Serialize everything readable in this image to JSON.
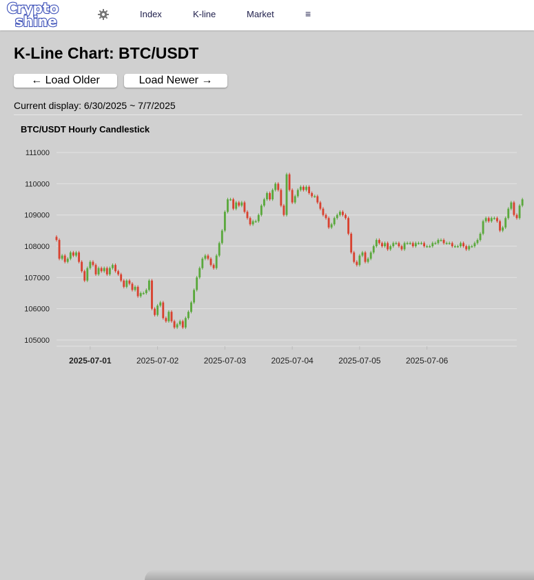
{
  "nav": {
    "logo_line1": "Crypto",
    "logo_line2": "shine",
    "settings_icon": "gear-icon",
    "links": [
      "Index",
      "K-line",
      "Market"
    ],
    "menu_icon": "≡"
  },
  "page": {
    "title": "K-Line Chart: BTC/USDT",
    "load_older": "← Load Older",
    "load_newer": "Load Newer →",
    "current_display": "Current display: 6/30/2025 ~ 7/7/2025"
  },
  "colors": {
    "up": "#5aa83c",
    "down": "#d8412f",
    "grid": "#e3e3e3",
    "logo_blue": "#3b4fb8"
  },
  "chart_data": {
    "type": "candlestick",
    "title": "BTC/USDT Hourly Candlestick",
    "ylim": [
      104800,
      111200
    ],
    "yticks": [
      105000,
      106000,
      107000,
      108000,
      109000,
      110000,
      111000
    ],
    "xlim": [
      "2025-06-30T12:00",
      "2025-07-07T08:00"
    ],
    "xticks": [
      "2025-07-01",
      "2025-07-02",
      "2025-07-03",
      "2025-07-04",
      "2025-07-05",
      "2025-07-06"
    ],
    "xtick_bold": "2025-07-01",
    "grid": true,
    "interval": "1h",
    "start": "2025-06-30T12:00",
    "closes": [
      108200,
      107600,
      107700,
      107500,
      107600,
      107800,
      107700,
      107800,
      107500,
      107200,
      106900,
      107300,
      107500,
      107400,
      107100,
      107300,
      107200,
      107300,
      107100,
      107300,
      107400,
      107200,
      107100,
      106900,
      106700,
      106900,
      106800,
      106600,
      106700,
      106400,
      106500,
      106500,
      106600,
      106900,
      106000,
      105800,
      106100,
      106200,
      105700,
      105600,
      105900,
      105600,
      105400,
      105500,
      105600,
      105400,
      105700,
      105900,
      106200,
      106600,
      107000,
      107300,
      107600,
      107700,
      107600,
      107400,
      107300,
      107700,
      108100,
      108500,
      109100,
      109500,
      109500,
      109200,
      109400,
      109300,
      109400,
      109100,
      108900,
      108700,
      108800,
      108800,
      109000,
      109300,
      109500,
      109700,
      109500,
      109800,
      110000,
      109800,
      109300,
      109000,
      110300,
      109800,
      109400,
      109600,
      109800,
      109900,
      109800,
      109900,
      109700,
      109600,
      109600,
      109400,
      109200,
      109000,
      108900,
      108600,
      108700,
      108900,
      109000,
      109100,
      109000,
      108900,
      108400,
      107800,
      107500,
      107400,
      107700,
      107800,
      107500,
      107600,
      107800,
      108000,
      108200,
      108100,
      108000,
      108100,
      107900,
      108000,
      108100,
      108100,
      108000,
      107900,
      108100,
      108100,
      108100,
      108000,
      108100,
      108100,
      108100,
      108000,
      108000,
      108000,
      108100,
      108100,
      108200,
      108200,
      108100,
      108100,
      108100,
      108000,
      108000,
      108000,
      108100,
      108000,
      107900,
      108000,
      108000,
      108100,
      108200,
      108400,
      108800,
      108900,
      108800,
      108900,
      108900,
      108800,
      108500,
      108600,
      108900,
      109200,
      109400,
      109000,
      108900,
      109300,
      109500,
      109400,
      109200,
      109200
    ]
  }
}
